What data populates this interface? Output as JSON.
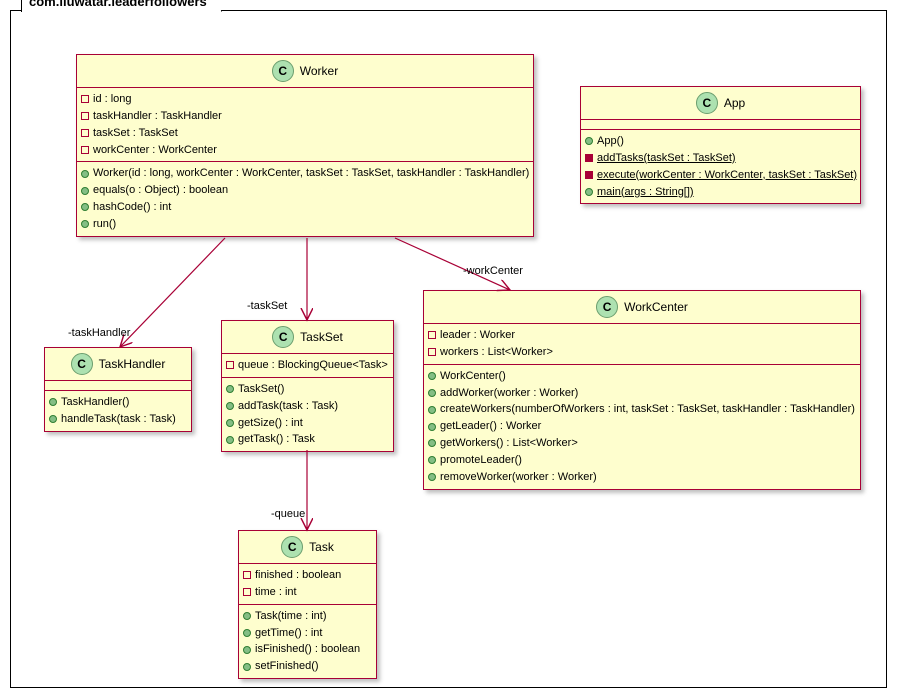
{
  "package": {
    "name": "com.iluwatar.leaderfollowers"
  },
  "edges": {
    "taskHandler": "-taskHandler",
    "taskSet": "-taskSet",
    "workCenter": "-workCenter",
    "queue": "-queue"
  },
  "classes": {
    "Worker": {
      "name": "Worker",
      "fields": [
        {
          "vis": "private",
          "text": "id : long"
        },
        {
          "vis": "private",
          "text": "taskHandler : TaskHandler"
        },
        {
          "vis": "private",
          "text": "taskSet : TaskSet"
        },
        {
          "vis": "private",
          "text": "workCenter : WorkCenter"
        }
      ],
      "methods": [
        {
          "vis": "public",
          "text": "Worker(id : long, workCenter : WorkCenter, taskSet : TaskSet, taskHandler : TaskHandler)"
        },
        {
          "vis": "public",
          "text": "equals(o : Object) : boolean"
        },
        {
          "vis": "public",
          "text": "hashCode() : int"
        },
        {
          "vis": "public",
          "text": "run()"
        }
      ]
    },
    "App": {
      "name": "App",
      "methods": [
        {
          "vis": "public",
          "text": "App()"
        },
        {
          "vis": "privfill",
          "text": "addTasks(taskSet : TaskSet)",
          "underline": true
        },
        {
          "vis": "privfill",
          "text": "execute(workCenter : WorkCenter, taskSet : TaskSet)",
          "underline": true
        },
        {
          "vis": "public",
          "text": "main(args : String[])",
          "underline": true
        }
      ]
    },
    "TaskHandler": {
      "name": "TaskHandler",
      "methods": [
        {
          "vis": "public",
          "text": "TaskHandler()"
        },
        {
          "vis": "public",
          "text": "handleTask(task : Task)"
        }
      ]
    },
    "TaskSet": {
      "name": "TaskSet",
      "fields": [
        {
          "vis": "private",
          "text": "queue : BlockingQueue<Task>"
        }
      ],
      "methods": [
        {
          "vis": "public",
          "text": "TaskSet()"
        },
        {
          "vis": "public",
          "text": "addTask(task : Task)"
        },
        {
          "vis": "public",
          "text": "getSize() : int"
        },
        {
          "vis": "public",
          "text": "getTask() : Task"
        }
      ]
    },
    "WorkCenter": {
      "name": "WorkCenter",
      "fields": [
        {
          "vis": "private",
          "text": "leader : Worker"
        },
        {
          "vis": "private",
          "text": "workers : List<Worker>"
        }
      ],
      "methods": [
        {
          "vis": "public",
          "text": "WorkCenter()"
        },
        {
          "vis": "public",
          "text": "addWorker(worker : Worker)"
        },
        {
          "vis": "public",
          "text": "createWorkers(numberOfWorkers : int, taskSet : TaskSet, taskHandler : TaskHandler)"
        },
        {
          "vis": "public",
          "text": "getLeader() : Worker"
        },
        {
          "vis": "public",
          "text": "getWorkers() : List<Worker>"
        },
        {
          "vis": "public",
          "text": "promoteLeader()"
        },
        {
          "vis": "public",
          "text": "removeWorker(worker : Worker)"
        }
      ]
    },
    "Task": {
      "name": "Task",
      "fields": [
        {
          "vis": "private",
          "text": "finished : boolean"
        },
        {
          "vis": "private",
          "text": "time : int"
        }
      ],
      "methods": [
        {
          "vis": "public",
          "text": "Task(time : int)"
        },
        {
          "vis": "public",
          "text": "getTime() : int"
        },
        {
          "vis": "public",
          "text": "isFinished() : boolean"
        },
        {
          "vis": "public",
          "text": "setFinished()"
        }
      ]
    }
  },
  "style": {
    "class_bg": "#fefece",
    "class_border": "#a80036",
    "arrow_color": "#a80036",
    "circle_bg": "#ade1b0",
    "public_bg": "#84be84",
    "font_size_member": 11,
    "font_size_title": 12
  }
}
